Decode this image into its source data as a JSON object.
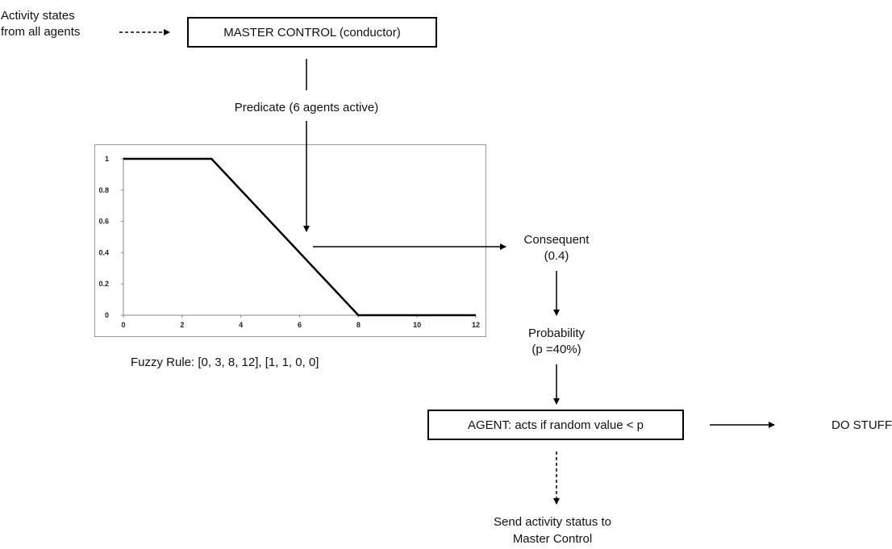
{
  "labels": {
    "activity_states": "Activity states\nfrom all agents",
    "master_control": "MASTER CONTROL (conductor)",
    "predicate": "Predicate (6 agents active)",
    "consequent": "Consequent\n(0.4)",
    "probability": "Probability\n(p =40%)",
    "agent": "AGENT: acts if random value < p",
    "do_stuff": "DO STUFF!",
    "send_status": "Send activity status to\nMaster Control",
    "fuzzy_rule": "Fuzzy Rule: [0, 3, 8, 12], [1, 1, 0, 0]"
  },
  "chart_data": {
    "type": "line",
    "x": [
      0,
      3,
      8,
      12
    ],
    "y": [
      1,
      1,
      0,
      0
    ],
    "xlim": [
      0,
      12
    ],
    "ylim": [
      0,
      1
    ],
    "xticks": [
      "0",
      "2",
      "4",
      "6",
      "8",
      "10",
      "12"
    ],
    "yticks": [
      "0",
      "0.2",
      "0.4",
      "0.6",
      "0.8",
      "1"
    ],
    "grid": false,
    "line_color": "#000000"
  }
}
